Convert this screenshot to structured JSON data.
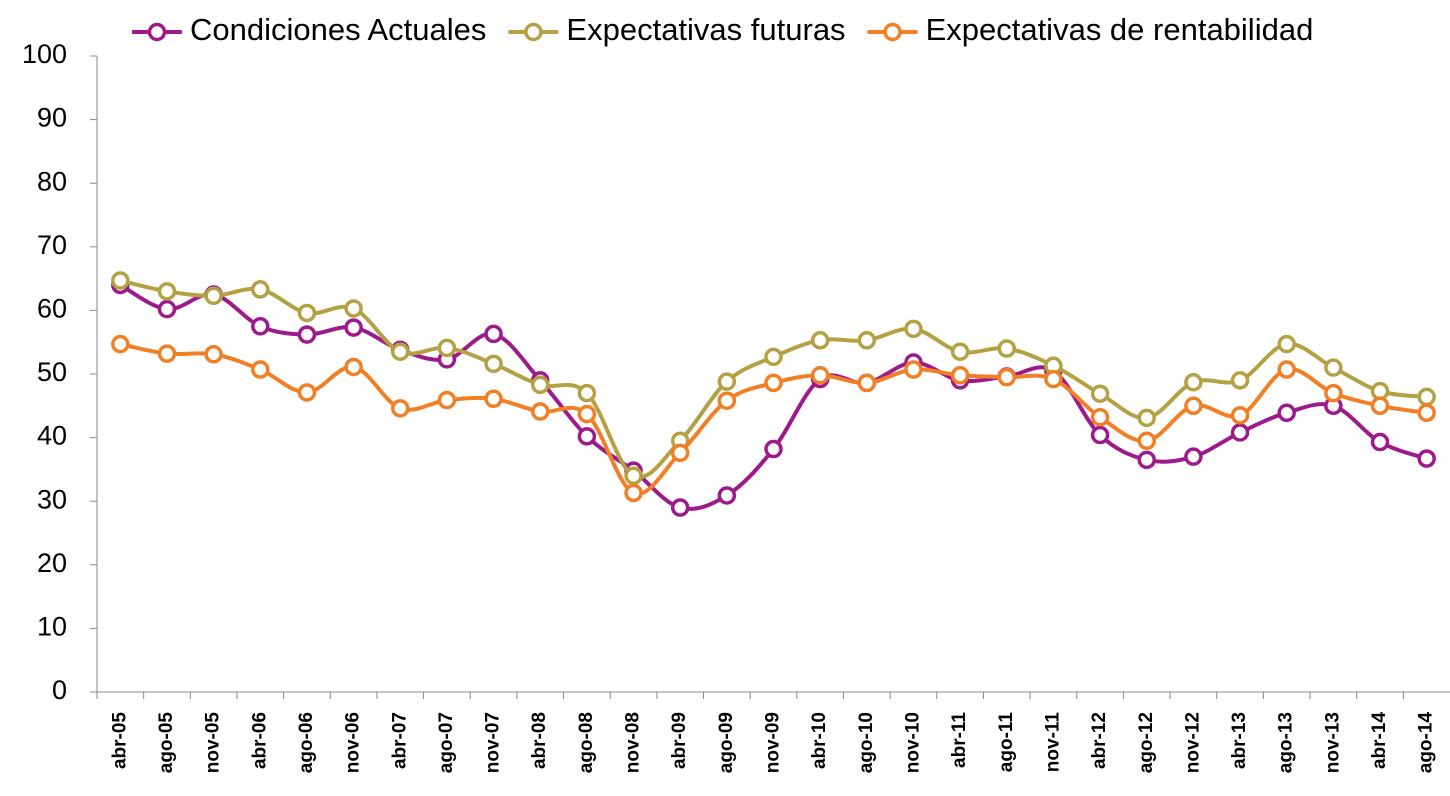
{
  "chart_data": {
    "type": "line",
    "categories": [
      "abr-05",
      "ago-05",
      "nov-05",
      "abr-06",
      "ago-06",
      "nov-06",
      "abr-07",
      "ago-07",
      "nov-07",
      "abr-08",
      "ago-08",
      "nov-08",
      "abr-09",
      "ago-09",
      "nov-09",
      "abr-10",
      "ago-10",
      "nov-10",
      "abr-11",
      "ago-11",
      "nov-11",
      "abr-12",
      "ago-12",
      "nov-12",
      "abr-13",
      "ago-13",
      "nov-13",
      "abr-14",
      "ago-14"
    ],
    "series": [
      {
        "name": "Condiciones Actuales",
        "color": "#9c1a8c",
        "values": [
          64.0,
          60.2,
          62.5,
          57.5,
          56.2,
          57.3,
          53.8,
          52.3,
          56.3,
          49.0,
          40.2,
          34.8,
          29.0,
          30.9,
          38.2,
          49.2,
          48.6,
          51.8,
          49.0,
          49.6,
          50.5,
          40.4,
          36.5,
          37.0,
          40.8,
          43.9,
          45.0,
          39.3,
          36.7
        ]
      },
      {
        "name": "Expectativas futuras",
        "color": "#b3a144",
        "values": [
          64.7,
          63.0,
          62.3,
          63.3,
          59.6,
          60.3,
          53.5,
          54.1,
          51.6,
          48.3,
          47.0,
          34.0,
          39.5,
          48.8,
          52.7,
          55.3,
          55.3,
          57.1,
          53.5,
          54.0,
          51.3,
          46.9,
          43.1,
          48.7,
          49.0,
          54.7,
          51.0,
          47.3,
          46.4
        ]
      },
      {
        "name": "Expectativas de rentabilidad",
        "color": "#f07f26",
        "values": [
          54.7,
          53.2,
          53.1,
          50.7,
          47.1,
          51.1,
          44.6,
          45.9,
          46.1,
          44.1,
          43.7,
          31.3,
          37.6,
          45.8,
          48.6,
          49.8,
          48.6,
          50.7,
          49.8,
          49.5,
          49.2,
          43.2,
          39.5,
          45.0,
          43.5,
          50.7,
          47.0,
          45.0,
          43.9
        ]
      }
    ],
    "ylim": [
      0,
      100
    ],
    "yticks": [
      0,
      10,
      20,
      30,
      40,
      50,
      60,
      70,
      80,
      90,
      100
    ],
    "legend": "top"
  }
}
